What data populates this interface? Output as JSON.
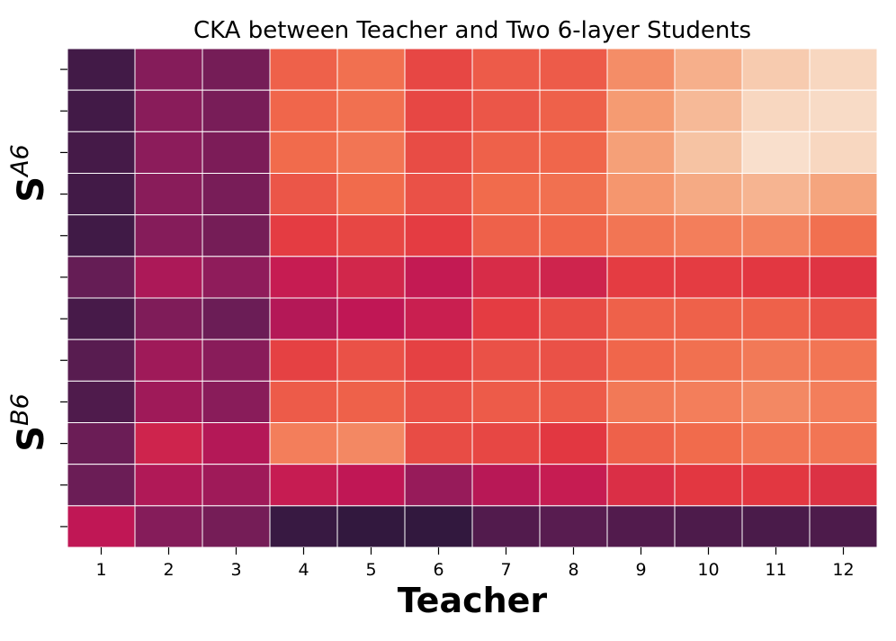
{
  "chart_data": {
    "type": "heatmap",
    "title": "CKA between Teacher and Two 6-layer Students",
    "xlabel": "Teacher",
    "ylabels": [
      {
        "main": "S",
        "sup": "A6"
      },
      {
        "main": "S",
        "sup": "B6"
      }
    ],
    "x_categories": [
      "1",
      "2",
      "3",
      "4",
      "5",
      "6",
      "7",
      "8",
      "9",
      "10",
      "11",
      "12"
    ],
    "colormap": "rocket",
    "value_range": [
      0,
      1
    ],
    "rows": [
      [
        0.12,
        0.35,
        0.3,
        0.7,
        0.73,
        0.65,
        0.69,
        0.69,
        0.79,
        0.86,
        0.92,
        0.95
      ],
      [
        0.12,
        0.36,
        0.31,
        0.71,
        0.73,
        0.65,
        0.68,
        0.7,
        0.82,
        0.88,
        0.95,
        0.96
      ],
      [
        0.13,
        0.37,
        0.32,
        0.72,
        0.74,
        0.66,
        0.7,
        0.71,
        0.83,
        0.9,
        0.97,
        0.95
      ],
      [
        0.12,
        0.36,
        0.31,
        0.68,
        0.72,
        0.67,
        0.72,
        0.73,
        0.81,
        0.85,
        0.87,
        0.84
      ],
      [
        0.11,
        0.35,
        0.3,
        0.63,
        0.65,
        0.63,
        0.7,
        0.71,
        0.74,
        0.76,
        0.77,
        0.73
      ],
      [
        0.25,
        0.45,
        0.38,
        0.52,
        0.56,
        0.51,
        0.58,
        0.55,
        0.63,
        0.63,
        0.62,
        0.61
      ],
      [
        0.14,
        0.33,
        0.27,
        0.47,
        0.5,
        0.53,
        0.63,
        0.66,
        0.7,
        0.7,
        0.7,
        0.67
      ],
      [
        0.2,
        0.42,
        0.36,
        0.64,
        0.67,
        0.64,
        0.67,
        0.67,
        0.71,
        0.73,
        0.75,
        0.74
      ],
      [
        0.17,
        0.42,
        0.36,
        0.69,
        0.7,
        0.67,
        0.69,
        0.69,
        0.75,
        0.76,
        0.78,
        0.76
      ],
      [
        0.27,
        0.55,
        0.47,
        0.76,
        0.78,
        0.66,
        0.65,
        0.62,
        0.7,
        0.72,
        0.74,
        0.74
      ],
      [
        0.27,
        0.46,
        0.42,
        0.52,
        0.5,
        0.4,
        0.48,
        0.52,
        0.59,
        0.62,
        0.62,
        0.6
      ],
      [
        0.5,
        0.35,
        0.3,
        0.07,
        0.04,
        0.04,
        0.18,
        0.2,
        0.18,
        0.16,
        0.15,
        0.16
      ]
    ]
  }
}
